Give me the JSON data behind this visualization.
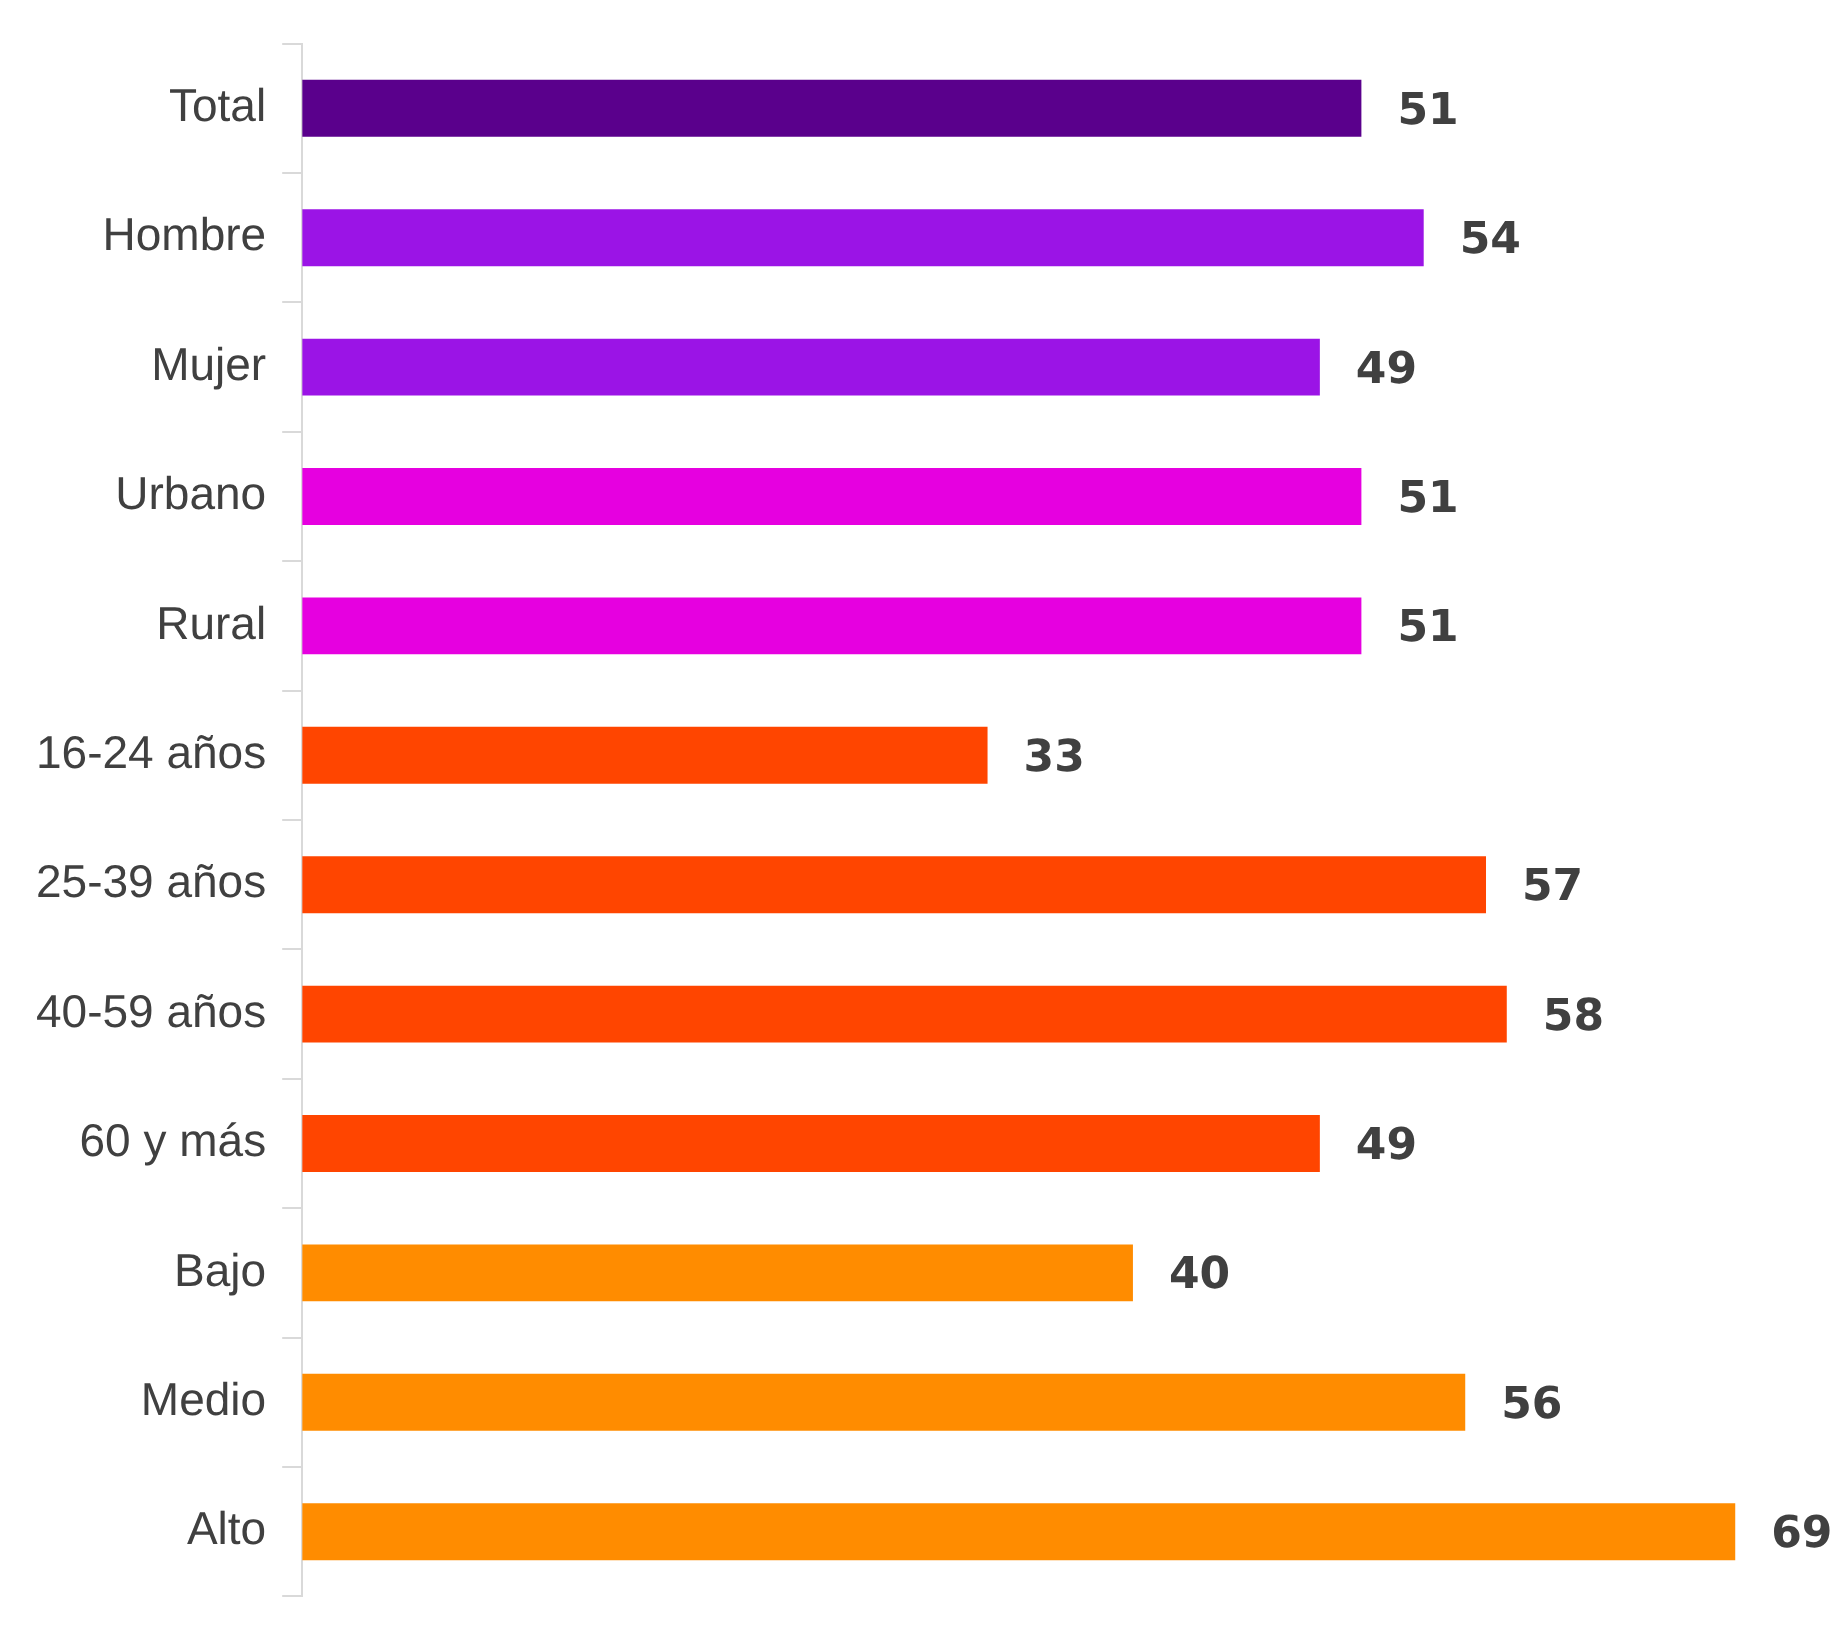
{
  "chart_data": {
    "type": "bar",
    "orientation": "horizontal",
    "categories": [
      "Total",
      "Hombre",
      "Mujer",
      "Urbano",
      "Rural",
      "16-24 años",
      "25-39 años",
      "40-59 años",
      "60 y más",
      "Bajo",
      "Medio",
      "Alto"
    ],
    "values": [
      51,
      54,
      49,
      51,
      51,
      33,
      57,
      58,
      49,
      40,
      56,
      69
    ],
    "colors": [
      "#5a008c",
      "#9b14e6",
      "#9b14e6",
      "#e600e0",
      "#e600e0",
      "#ff4500",
      "#ff4500",
      "#ff4500",
      "#ff4500",
      "#ff8c00",
      "#ff8c00",
      "#ff8c00"
    ],
    "data_labels": true,
    "grid": false,
    "legend": false
  }
}
